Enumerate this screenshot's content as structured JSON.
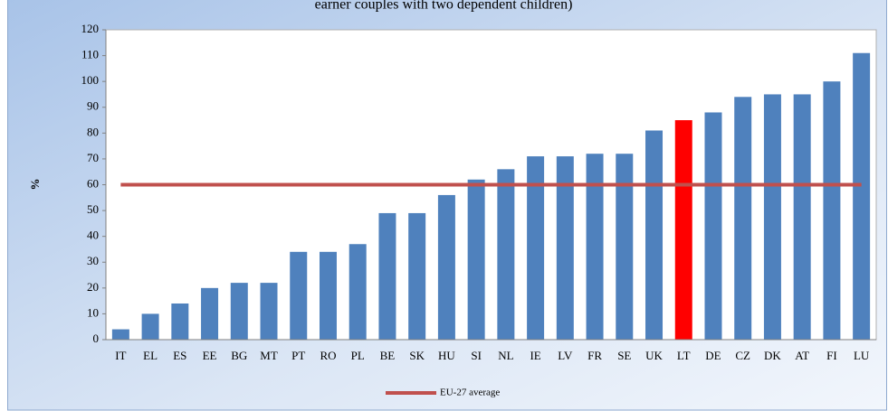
{
  "chart_data": {
    "type": "bar",
    "title": "earner couples with two dependent children)",
    "y_label": "%",
    "categories": [
      "IT",
      "EL",
      "ES",
      "EE",
      "BG",
      "MT",
      "PT",
      "RO",
      "PL",
      "BE",
      "SK",
      "HU",
      "SI",
      "NL",
      "IE",
      "LV",
      "FR",
      "SE",
      "UK",
      "LT",
      "DE",
      "CZ",
      "DK",
      "AT",
      "FI",
      "LU"
    ],
    "values": [
      4,
      10,
      14,
      20,
      22,
      22,
      34,
      34,
      37,
      49,
      49,
      56,
      62,
      66,
      71,
      71,
      72,
      72,
      81,
      85,
      88,
      94,
      95,
      95,
      100,
      111
    ],
    "colors": [
      "#4f81bd",
      "#4f81bd",
      "#4f81bd",
      "#4f81bd",
      "#4f81bd",
      "#4f81bd",
      "#4f81bd",
      "#4f81bd",
      "#4f81bd",
      "#4f81bd",
      "#4f81bd",
      "#4f81bd",
      "#4f81bd",
      "#4f81bd",
      "#4f81bd",
      "#4f81bd",
      "#4f81bd",
      "#4f81bd",
      "#4f81bd",
      "#ff0000",
      "#4f81bd",
      "#4f81bd",
      "#4f81bd",
      "#4f81bd",
      "#4f81bd",
      "#4f81bd"
    ],
    "reference_line": {
      "name": "EU-27 average",
      "value": 60,
      "color": "#c0504d"
    },
    "ylim": [
      0,
      120
    ],
    "yticks": [
      0,
      10,
      20,
      30,
      40,
      50,
      60,
      70,
      80,
      90,
      100,
      110,
      120
    ],
    "grid": false
  }
}
